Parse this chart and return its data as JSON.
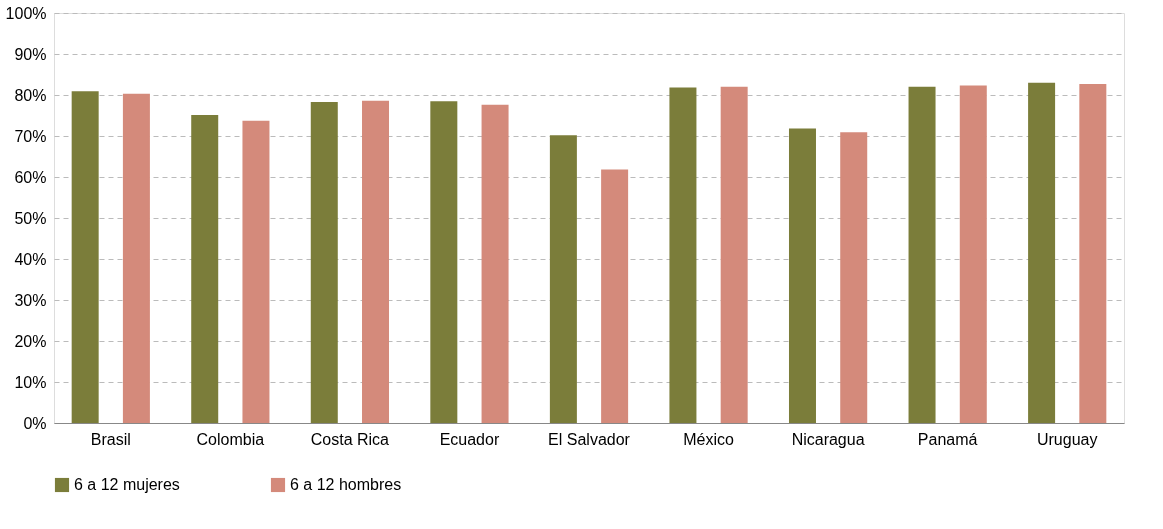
{
  "chart_data": {
    "type": "bar",
    "categories": [
      "Brasil",
      "Colombia",
      "Costa Rica",
      "Ecuador",
      "El Salvador",
      "México",
      "Nicaragua",
      "Panamá",
      "Uruguay"
    ],
    "series": [
      {
        "name": "6 a 12 mujeres",
        "color": "#7b7d3a",
        "values": [
          80.9,
          75.1,
          78.3,
          78.5,
          70.2,
          81.8,
          71.8,
          82.0,
          83.0
        ]
      },
      {
        "name": "6 a 12 hombres",
        "color": "#d48a7b",
        "values": [
          80.3,
          73.7,
          78.6,
          77.6,
          61.8,
          82.0,
          70.9,
          82.3,
          82.7
        ]
      }
    ],
    "ylim": [
      0,
      100
    ],
    "yticks": [
      {
        "value": 0,
        "label": "0%"
      },
      {
        "value": 10,
        "label": "10%"
      },
      {
        "value": 20,
        "label": "20%"
      },
      {
        "value": 30,
        "label": "30%"
      },
      {
        "value": 40,
        "label": "40%"
      },
      {
        "value": 50,
        "label": "50%"
      },
      {
        "value": 60,
        "label": "60%"
      },
      {
        "value": 70,
        "label": "70%"
      },
      {
        "value": 80,
        "label": "80%"
      },
      {
        "value": 90,
        "label": "90%"
      },
      {
        "value": 100,
        "label": "100%"
      }
    ],
    "grid": "y",
    "legend": "bottom"
  }
}
